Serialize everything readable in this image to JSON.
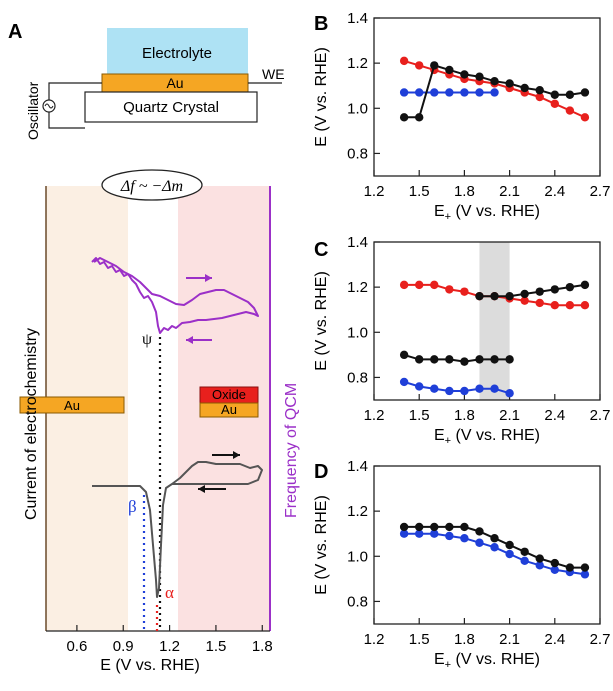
{
  "panels": {
    "A": {
      "label": "A",
      "schematic": {
        "electrolyte": "Electrolyte",
        "au": "Au",
        "we": "WE",
        "quartz": "Quartz Crystal",
        "oscillator": "Oscillator"
      },
      "balloon": "Δf ~ −Δm",
      "ylabel_left": "Current of electrochemistry",
      "ylabel_right": "Frequency of QCM",
      "xlabel": "E (V vs. RHE)",
      "xticks": [
        "0.6",
        "0.9",
        "1.2",
        "1.5",
        "1.8"
      ],
      "left_box": "Au",
      "right_box_top": "Oxide",
      "right_box_bottom": "Au",
      "psi": "ψ",
      "beta": "β",
      "alpha": "α",
      "colors": {
        "left_region": "#fbefe3",
        "right_region": "#fbe1e1",
        "qcm": "#9b30c8",
        "cv": "#555555",
        "gold": "#f5a623",
        "oxide": "#e8201d",
        "electrolyte": "#aee2f4",
        "beta": "#1f3fd8",
        "alpha": "#e8201d"
      },
      "chart_data": {
        "type": "line",
        "x_range": [
          0.4,
          1.85
        ],
        "vlines": {
          "psi": 1.17,
          "beta": 1.06,
          "alpha": 1.16
        }
      }
    },
    "B": {
      "label": "B",
      "ylabel": "E (V vs. RHE)",
      "xlabel_main": "E",
      "xlabel_sub": "+",
      "xlabel_rest": " (V vs. RHE)",
      "yticks": [
        "0.8",
        "1.0",
        "1.2",
        "1.4"
      ],
      "xticks": [
        "1.2",
        "1.5",
        "1.8",
        "2.1",
        "2.4",
        "2.7"
      ],
      "chart_data": {
        "type": "line",
        "xlim": [
          1.2,
          2.7
        ],
        "ylim": [
          0.7,
          1.4
        ],
        "series": [
          {
            "color": "#e8201d",
            "x": [
              1.4,
              1.5,
              1.6,
              1.7,
              1.8,
              1.9,
              2.0,
              2.1,
              2.2,
              2.3,
              2.4,
              2.5,
              2.6
            ],
            "y": [
              1.21,
              1.19,
              1.17,
              1.15,
              1.13,
              1.12,
              1.11,
              1.09,
              1.07,
              1.05,
              1.02,
              0.99,
              0.96
            ]
          },
          {
            "color": "#1f3fd8",
            "x": [
              1.4,
              1.5,
              1.6,
              1.7,
              1.8,
              1.9,
              2.0
            ],
            "y": [
              1.07,
              1.07,
              1.07,
              1.07,
              1.07,
              1.07,
              1.07
            ]
          },
          {
            "color": "#111111",
            "x": [
              1.4,
              1.5,
              1.6,
              1.7,
              1.8,
              1.9,
              2.0,
              2.1,
              2.2,
              2.3,
              2.4,
              2.5,
              2.6
            ],
            "y": [
              0.96,
              0.96,
              1.19,
              1.17,
              1.15,
              1.14,
              1.12,
              1.11,
              1.09,
              1.08,
              1.06,
              1.06,
              1.07
            ]
          }
        ]
      }
    },
    "C": {
      "label": "C",
      "ylabel": "E (V vs. RHE)",
      "xlabel_main": "E",
      "xlabel_sub": "+",
      "xlabel_rest": " (V vs. RHE)",
      "yticks": [
        "0.8",
        "1.0",
        "1.2",
        "1.4"
      ],
      "xticks": [
        "1.2",
        "1.5",
        "1.8",
        "2.1",
        "2.4",
        "2.7"
      ],
      "chart_data": {
        "type": "line",
        "xlim": [
          1.2,
          2.7
        ],
        "ylim": [
          0.7,
          1.4
        ],
        "shade": [
          1.9,
          2.1
        ],
        "series": [
          {
            "color": "#e8201d",
            "x": [
              1.4,
              1.5,
              1.6,
              1.7,
              1.8,
              1.9,
              2.0,
              2.1,
              2.2,
              2.3,
              2.4,
              2.5,
              2.6
            ],
            "y": [
              1.21,
              1.21,
              1.21,
              1.19,
              1.18,
              1.16,
              1.16,
              1.15,
              1.14,
              1.13,
              1.12,
              1.12,
              1.12
            ]
          },
          {
            "color": "#111111",
            "x": [
              1.9,
              2.0,
              2.1,
              2.2,
              2.3,
              2.4,
              2.5,
              2.6
            ],
            "y": [
              1.16,
              1.16,
              1.16,
              1.17,
              1.18,
              1.19,
              1.2,
              1.21
            ]
          },
          {
            "color": "#111111",
            "x": [
              1.4,
              1.5,
              1.6,
              1.7,
              1.8,
              1.9,
              2.0,
              2.1
            ],
            "y": [
              0.9,
              0.88,
              0.88,
              0.88,
              0.87,
              0.88,
              0.88,
              0.88
            ]
          },
          {
            "color": "#1f3fd8",
            "x": [
              1.4,
              1.5,
              1.6,
              1.7,
              1.8,
              1.9,
              2.0,
              2.1
            ],
            "y": [
              0.78,
              0.76,
              0.75,
              0.74,
              0.74,
              0.75,
              0.75,
              0.73
            ]
          }
        ]
      }
    },
    "D": {
      "label": "D",
      "ylabel": "E (V vs. RHE)",
      "xlabel_main": "E",
      "xlabel_sub": "+",
      "xlabel_rest": " (V vs. RHE)",
      "yticks": [
        "0.8",
        "1.0",
        "1.2",
        "1.4"
      ],
      "xticks": [
        "1.2",
        "1.5",
        "1.8",
        "2.1",
        "2.4",
        "2.7"
      ],
      "chart_data": {
        "type": "line",
        "xlim": [
          1.2,
          2.7
        ],
        "ylim": [
          0.7,
          1.4
        ],
        "series": [
          {
            "color": "#1f3fd8",
            "x": [
              1.4,
              1.5,
              1.6,
              1.7,
              1.8,
              1.9,
              2.0,
              2.1,
              2.2,
              2.3,
              2.4,
              2.5,
              2.6
            ],
            "y": [
              1.1,
              1.1,
              1.1,
              1.09,
              1.08,
              1.06,
              1.04,
              1.01,
              0.98,
              0.96,
              0.94,
              0.93,
              0.92
            ]
          },
          {
            "color": "#111111",
            "x": [
              1.4,
              1.5,
              1.6,
              1.7,
              1.8,
              1.9,
              2.0,
              2.1,
              2.2,
              2.3,
              2.4,
              2.5,
              2.6
            ],
            "y": [
              1.13,
              1.13,
              1.13,
              1.13,
              1.13,
              1.11,
              1.08,
              1.05,
              1.02,
              0.99,
              0.97,
              0.95,
              0.95
            ]
          }
        ]
      }
    }
  }
}
